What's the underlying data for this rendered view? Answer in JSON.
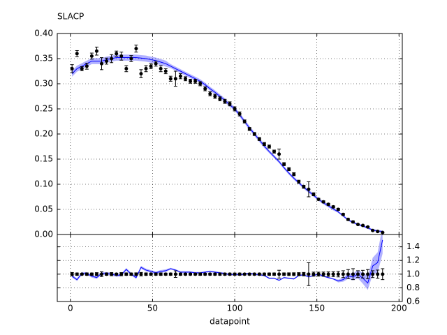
{
  "chart_data": {
    "type": "errorbar",
    "title": "SLACP",
    "xlabel": "datapoint",
    "x": [
      1,
      4,
      7,
      10,
      13,
      16,
      19,
      22,
      25,
      28,
      31,
      34,
      37,
      40,
      43,
      46,
      49,
      52,
      55,
      58,
      61,
      64,
      67,
      70,
      73,
      76,
      79,
      82,
      85,
      88,
      91,
      94,
      97,
      100,
      103,
      106,
      109,
      112,
      115,
      118,
      121,
      124,
      127,
      130,
      133,
      136,
      139,
      142,
      145,
      148,
      151,
      154,
      157,
      160,
      163,
      166,
      169,
      172,
      175,
      178,
      181,
      184,
      187,
      190
    ],
    "xlim": [
      -8,
      202
    ],
    "xticks": [
      0,
      50,
      100,
      150,
      200
    ],
    "grid": true,
    "panels": [
      {
        "ylim": [
          0,
          0.4
        ],
        "yticks": [
          {
            "value": 0,
            "label": "0.00"
          },
          {
            "value": 0.05,
            "label": "0.05"
          },
          {
            "value": 0.1,
            "label": "0.10"
          },
          {
            "value": 0.15,
            "label": "0.15"
          },
          {
            "value": 0.2,
            "label": "0.20"
          },
          {
            "value": 0.25,
            "label": "0.25"
          },
          {
            "value": 0.3,
            "label": "0.30"
          },
          {
            "value": 0.35,
            "label": "0.35"
          },
          {
            "value": 0.4,
            "label": "0.40"
          }
        ],
        "ytick_side": "left",
        "series": [
          {
            "color": "#0000ff",
            "band": true,
            "values": [
              0.32,
              0.33,
              0.335,
              0.34,
              0.345,
              0.345,
              0.345,
              0.348,
              0.35,
              0.352,
              0.352,
              0.352,
              0.352,
              0.352,
              0.351,
              0.35,
              0.348,
              0.346,
              0.343,
              0.34,
              0.335,
              0.33,
              0.325,
              0.32,
              0.315,
              0.31,
              0.305,
              0.298,
              0.29,
              0.283,
              0.275,
              0.267,
              0.258,
              0.25,
              0.238,
              0.225,
              0.212,
              0.2,
              0.188,
              0.176,
              0.165,
              0.155,
              0.145,
              0.133,
              0.122,
              0.112,
              0.103,
              0.094,
              0.086,
              0.078,
              0.07,
              0.063,
              0.057,
              0.051,
              0.045,
              0.037,
              0.029,
              0.024,
              0.02,
              0.017,
              0.013,
              0.009,
              0.007,
              0.006
            ],
            "errors": [
              0.006,
              0.006,
              0.006,
              0.006,
              0.006,
              0.006,
              0.006,
              0.006,
              0.006,
              0.006,
              0.006,
              0.006,
              0.006,
              0.006,
              0.006,
              0.006,
              0.006,
              0.006,
              0.006,
              0.006,
              0.004,
              0.004,
              0.004,
              0.004,
              0.004,
              0.004,
              0.004,
              0.004,
              0.004,
              0.004,
              0.004,
              0.004,
              0.004,
              0.004,
              0.004,
              0.004,
              0.004,
              0.004,
              0.004,
              0.004,
              0.003,
              0.003,
              0.003,
              0.003,
              0.003,
              0.003,
              0.003,
              0.003,
              0.003,
              0.003,
              0.003,
              0.003,
              0.003,
              0.003,
              0.002,
              0.002,
              0.002,
              0.002,
              0.002,
              0.002,
              0.002,
              0.002,
              0.002,
              0.002
            ]
          },
          {
            "color": "#000000",
            "band": false,
            "values": [
              0.33,
              0.36,
              0.33,
              0.335,
              0.355,
              0.365,
              0.34,
              0.345,
              0.35,
              0.36,
              0.355,
              0.33,
              0.35,
              0.37,
              0.32,
              0.33,
              0.335,
              0.34,
              0.33,
              0.325,
              0.31,
              0.31,
              0.315,
              0.31,
              0.305,
              0.305,
              0.3,
              0.29,
              0.28,
              0.275,
              0.27,
              0.265,
              0.26,
              0.25,
              0.24,
              0.225,
              0.21,
              0.2,
              0.19,
              0.18,
              0.175,
              0.165,
              0.16,
              0.14,
              0.13,
              0.12,
              0.105,
              0.095,
              0.09,
              0.08,
              0.07,
              0.065,
              0.06,
              0.055,
              0.05,
              0.04,
              0.03,
              0.025,
              0.02,
              0.018,
              0.015,
              0.008,
              0.006,
              0.004
            ],
            "errors": [
              0.008,
              0.006,
              0.004,
              0.006,
              0.006,
              0.008,
              0.012,
              0.006,
              0.008,
              0.005,
              0.008,
              0.006,
              0.006,
              0.007,
              0.008,
              0.006,
              0.005,
              0.005,
              0.006,
              0.005,
              0.005,
              0.015,
              0.005,
              0.004,
              0.004,
              0.004,
              0.004,
              0.004,
              0.004,
              0.004,
              0.004,
              0.004,
              0.004,
              0.004,
              0.004,
              0.003,
              0.003,
              0.003,
              0.003,
              0.003,
              0.003,
              0.003,
              0.01,
              0.003,
              0.003,
              0.003,
              0.003,
              0.003,
              0.015,
              0.003,
              0.002,
              0.002,
              0.002,
              0.002,
              0.002,
              0.002,
              0.002,
              0.002,
              0.001,
              0.001,
              0.001,
              0.001,
              0.001,
              0.001
            ]
          }
        ]
      },
      {
        "ylim": [
          0.6,
          1.58
        ],
        "yticks": [
          0.6,
          0.8,
          {
            "value": 1,
            "label": "1.0"
          },
          1.2,
          1.4
        ],
        "ytick_side": "right",
        "xtick_labels": true,
        "series": [
          {
            "color": "#0000ff",
            "band": true,
            "values": [
              0.97,
              0.92,
              1.01,
              1.01,
              0.97,
              0.95,
              1.01,
              1.01,
              1.0,
              0.98,
              0.99,
              1.07,
              1.0,
              0.95,
              1.1,
              1.06,
              1.04,
              1.02,
              1.04,
              1.05,
              1.08,
              1.06,
              1.03,
              1.03,
              1.03,
              1.02,
              1.02,
              1.03,
              1.04,
              1.03,
              1.02,
              1.01,
              0.99,
              1.0,
              0.99,
              1.0,
              1.01,
              1.0,
              0.99,
              0.98,
              0.94,
              0.94,
              0.91,
              0.95,
              0.94,
              0.93,
              0.98,
              0.99,
              0.96,
              0.98,
              1.0,
              0.97,
              0.95,
              0.93,
              0.9,
              0.92,
              0.97,
              0.96,
              1.0,
              0.94,
              0.87,
              1.12,
              1.17,
              1.5
            ],
            "errors": [
              0.02,
              0.02,
              0.02,
              0.02,
              0.02,
              0.02,
              0.02,
              0.02,
              0.02,
              0.02,
              0.02,
              0.02,
              0.02,
              0.02,
              0.02,
              0.02,
              0.02,
              0.02,
              0.02,
              0.02,
              0.012,
              0.012,
              0.012,
              0.012,
              0.012,
              0.012,
              0.012,
              0.012,
              0.012,
              0.012,
              0.012,
              0.012,
              0.012,
              0.012,
              0.012,
              0.012,
              0.012,
              0.012,
              0.012,
              0.012,
              0.01,
              0.01,
              0.01,
              0.01,
              0.01,
              0.01,
              0.01,
              0.01,
              0.01,
              0.01,
              0.01,
              0.01,
              0.01,
              0.01,
              0.02,
              0.03,
              0.04,
              0.05,
              0.06,
              0.08,
              0.1,
              0.12,
              0.15,
              0.2
            ]
          },
          {
            "color": "#000000",
            "band": false,
            "values": [
              1,
              1,
              1,
              1,
              1,
              1,
              1,
              1,
              1,
              1,
              1,
              1,
              1,
              1,
              1,
              1,
              1,
              1,
              1,
              1,
              1,
              1,
              1,
              1,
              1,
              1,
              1,
              1,
              1,
              1,
              1,
              1,
              1,
              1,
              1,
              1,
              1,
              1,
              1,
              1,
              1,
              1,
              1,
              1,
              1,
              1,
              1,
              1,
              1,
              1,
              1,
              1,
              1,
              1,
              1,
              1,
              1,
              1,
              1,
              1,
              1,
              1,
              1,
              1
            ],
            "errors": [
              0.024,
              0.017,
              0.012,
              0.018,
              0.017,
              0.022,
              0.035,
              0.017,
              0.023,
              0.014,
              0.023,
              0.018,
              0.017,
              0.019,
              0.025,
              0.018,
              0.015,
              0.015,
              0.018,
              0.015,
              0.016,
              0.048,
              0.016,
              0.013,
              0.013,
              0.013,
              0.017,
              0.014,
              0.014,
              0.015,
              0.015,
              0.015,
              0.015,
              0.016,
              0.016,
              0.013,
              0.014,
              0.015,
              0.015,
              0.016,
              0.017,
              0.017,
              0.057,
              0.018,
              0.019,
              0.02,
              0.022,
              0.025,
              0.167,
              0.03,
              0.029,
              0.031,
              0.033,
              0.036,
              0.04,
              0.05,
              0.067,
              0.08,
              0.05,
              0.056,
              0.067,
              0.05,
              0.06,
              0.08
            ]
          }
        ]
      }
    ]
  }
}
